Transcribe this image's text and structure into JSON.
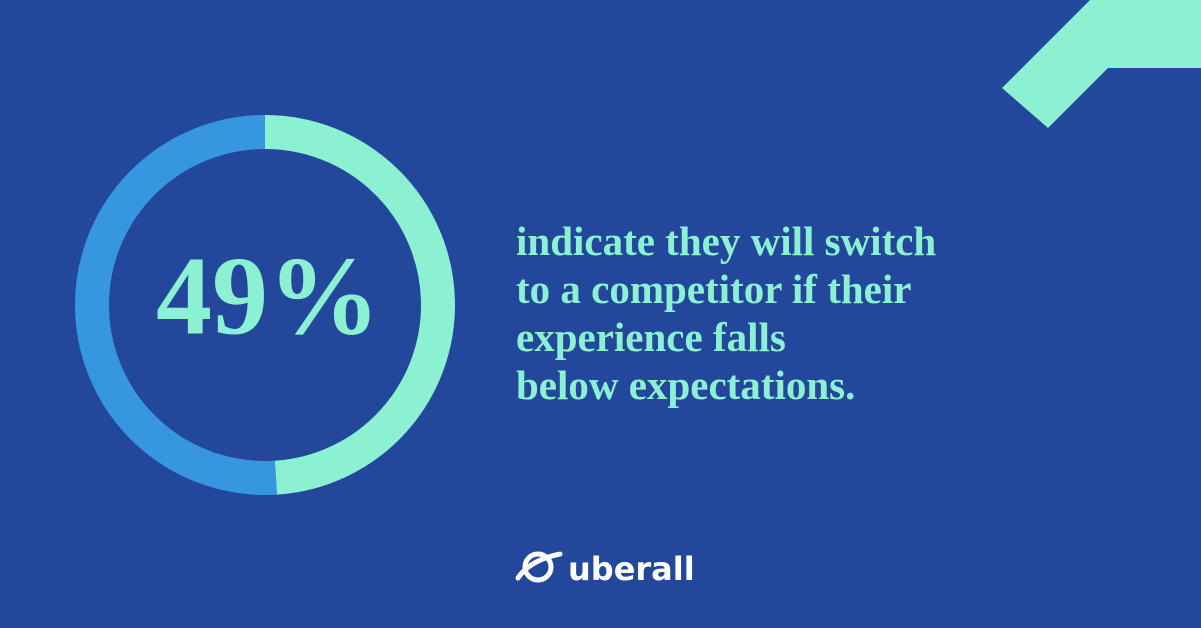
{
  "chart_data": {
    "type": "donut",
    "values": [
      49,
      51
    ],
    "value_labels": [
      "49%",
      null
    ],
    "colors": [
      "#8cf0d2",
      "#3796e0"
    ],
    "annotation": [
      "indicate they will switch",
      "to a competitor if their",
      "experience falls",
      "below expectations."
    ],
    "brand": "uberall"
  }
}
